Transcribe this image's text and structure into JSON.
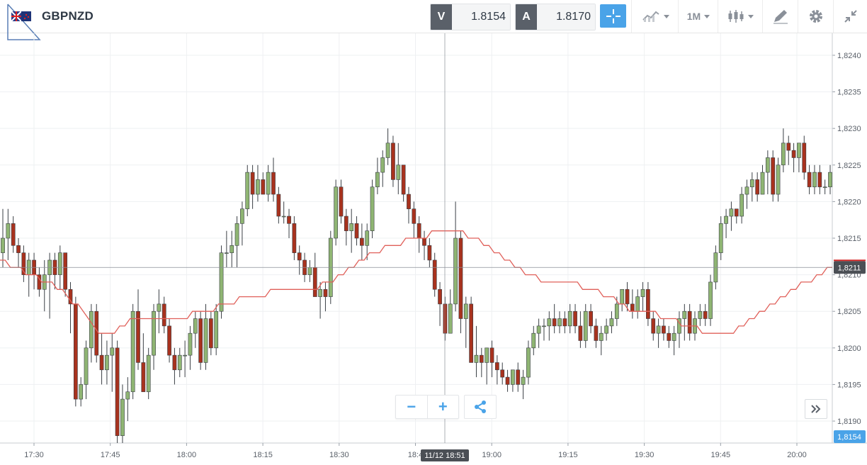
{
  "header": {
    "symbol": "GBPNZD",
    "bid_tag": "V",
    "bid_value": "1.8154",
    "ask_tag": "A",
    "ask_value": "1.8170",
    "timeframe": "1M",
    "icons": [
      "flag-gb-nz-icon",
      "crosshair-icon",
      "chart-style-icon",
      "candlestick-icon",
      "drawing-tools-icon",
      "gear-icon",
      "collapse-icon"
    ]
  },
  "chart_data": {
    "type": "candlestick",
    "ylim": [
      1.8187,
      1.8243
    ],
    "y_ticks": [
      "1,8190",
      "1,8195",
      "1,8200",
      "1,8205",
      "1,8210",
      "1,8215",
      "1,8220",
      "1,8225",
      "1,8230",
      "1,8235",
      "1,8240"
    ],
    "x_ticks": [
      "17:30",
      "17:45",
      "18:00",
      "18:15",
      "18:30",
      "18:4",
      "19:00",
      "19:15",
      "19:30",
      "19:45",
      "20:00"
    ],
    "crosshair_time_label": "11/12 18:51",
    "crosshair_price": 1.8211,
    "crosshair_price_label": "1,8211",
    "current_price": 1.8154,
    "current_price_label": "1,8154",
    "colors": {
      "up": "#8fb573",
      "down": "#a8321e",
      "ma": "#e0605a",
      "price_tag_dark": "#4b4f55",
      "price_tag_blue": "#4aa3e8"
    },
    "candles": [
      [
        1.8213,
        1.8219,
        1.8211,
        1.8215
      ],
      [
        1.8215,
        1.8219,
        1.8212,
        1.8217
      ],
      [
        1.8217,
        1.8218,
        1.8213,
        1.8214
      ],
      [
        1.8214,
        1.8215,
        1.8211,
        1.8213
      ],
      [
        1.8213,
        1.8214,
        1.8209,
        1.821
      ],
      [
        1.821,
        1.8213,
        1.8207,
        1.8212
      ],
      [
        1.8212,
        1.8213,
        1.8208,
        1.821
      ],
      [
        1.821,
        1.8211,
        1.8207,
        1.8208
      ],
      [
        1.8208,
        1.8212,
        1.8205,
        1.821
      ],
      [
        1.821,
        1.8213,
        1.8204,
        1.8212
      ],
      [
        1.8212,
        1.8213,
        1.8208,
        1.821
      ],
      [
        1.821,
        1.8214,
        1.8208,
        1.8213
      ],
      [
        1.8213,
        1.8213,
        1.8207,
        1.8208
      ],
      [
        1.8208,
        1.8209,
        1.8202,
        1.8206
      ],
      [
        1.8206,
        1.8207,
        1.8192,
        1.8193
      ],
      [
        1.8193,
        1.8196,
        1.8192,
        1.8195
      ],
      [
        1.8195,
        1.8201,
        1.8193,
        1.82
      ],
      [
        1.82,
        1.8206,
        1.8198,
        1.8205
      ],
      [
        1.8205,
        1.8206,
        1.8198,
        1.8199
      ],
      [
        1.8199,
        1.8202,
        1.8195,
        1.8197
      ],
      [
        1.8197,
        1.8201,
        1.8195,
        1.8199
      ],
      [
        1.8199,
        1.8202,
        1.8194,
        1.82
      ],
      [
        1.82,
        1.8201,
        1.8187,
        1.8188
      ],
      [
        1.8188,
        1.8195,
        1.8187,
        1.8193
      ],
      [
        1.8193,
        1.8196,
        1.819,
        1.8194
      ],
      [
        1.8194,
        1.8206,
        1.8193,
        1.8205
      ],
      [
        1.8205,
        1.8208,
        1.8197,
        1.8198
      ],
      [
        1.8198,
        1.8202,
        1.8194,
        1.8194
      ],
      [
        1.8194,
        1.82,
        1.8193,
        1.8199
      ],
      [
        1.8199,
        1.8206,
        1.8197,
        1.8205
      ],
      [
        1.8205,
        1.8208,
        1.8202,
        1.8206
      ],
      [
        1.8206,
        1.8207,
        1.8202,
        1.8203
      ],
      [
        1.8203,
        1.8204,
        1.8198,
        1.8199
      ],
      [
        1.8199,
        1.82,
        1.8195,
        1.8197
      ],
      [
        1.8197,
        1.82,
        1.8196,
        1.8199
      ],
      [
        1.8199,
        1.8201,
        1.8196,
        1.8199
      ],
      [
        1.8199,
        1.8203,
        1.8197,
        1.8202
      ],
      [
        1.8202,
        1.8205,
        1.82,
        1.8204
      ],
      [
        1.8204,
        1.8205,
        1.8197,
        1.8198
      ],
      [
        1.8198,
        1.8206,
        1.8197,
        1.8204
      ],
      [
        1.8204,
        1.8205,
        1.8199,
        1.82
      ],
      [
        1.82,
        1.8206,
        1.8199,
        1.8205
      ],
      [
        1.8205,
        1.8214,
        1.8204,
        1.8213
      ],
      [
        1.8213,
        1.8216,
        1.8211,
        1.8213
      ],
      [
        1.8213,
        1.8216,
        1.8211,
        1.8214
      ],
      [
        1.8214,
        1.8218,
        1.8211,
        1.8217
      ],
      [
        1.8217,
        1.822,
        1.8214,
        1.8219
      ],
      [
        1.8219,
        1.8225,
        1.8218,
        1.8224
      ],
      [
        1.8224,
        1.8225,
        1.8219,
        1.8221
      ],
      [
        1.8221,
        1.8225,
        1.822,
        1.8223
      ],
      [
        1.8223,
        1.8224,
        1.8221,
        1.8221
      ],
      [
        1.8221,
        1.8225,
        1.822,
        1.8224
      ],
      [
        1.8224,
        1.8226,
        1.822,
        1.8221
      ],
      [
        1.8221,
        1.8222,
        1.8217,
        1.8218
      ],
      [
        1.8218,
        1.822,
        1.8217,
        1.8218
      ],
      [
        1.8218,
        1.8219,
        1.8215,
        1.8217
      ],
      [
        1.8217,
        1.8218,
        1.8212,
        1.8213
      ],
      [
        1.8213,
        1.8214,
        1.821,
        1.8212
      ],
      [
        1.8212,
        1.8213,
        1.8209,
        1.821
      ],
      [
        1.821,
        1.8212,
        1.8209,
        1.8211
      ],
      [
        1.8211,
        1.8213,
        1.8207,
        1.8207
      ],
      [
        1.8207,
        1.8209,
        1.8204,
        1.8208
      ],
      [
        1.8208,
        1.8209,
        1.8205,
        1.8207
      ],
      [
        1.8207,
        1.8216,
        1.8206,
        1.8215
      ],
      [
        1.8215,
        1.8223,
        1.8214,
        1.8222
      ],
      [
        1.8222,
        1.8223,
        1.8217,
        1.8218
      ],
      [
        1.8218,
        1.8219,
        1.8214,
        1.8216
      ],
      [
        1.8216,
        1.8219,
        1.8213,
        1.8217
      ],
      [
        1.8217,
        1.8218,
        1.8214,
        1.8215
      ],
      [
        1.8215,
        1.8217,
        1.8212,
        1.8214
      ],
      [
        1.8214,
        1.8217,
        1.8212,
        1.8216
      ],
      [
        1.8216,
        1.8223,
        1.8215,
        1.8222
      ],
      [
        1.8222,
        1.8226,
        1.8221,
        1.8224
      ],
      [
        1.8224,
        1.8227,
        1.8222,
        1.8226
      ],
      [
        1.8226,
        1.823,
        1.8225,
        1.8228
      ],
      [
        1.8228,
        1.8229,
        1.8222,
        1.8223
      ],
      [
        1.8223,
        1.8228,
        1.8221,
        1.8225
      ],
      [
        1.8225,
        1.8225,
        1.822,
        1.8221
      ],
      [
        1.8221,
        1.8222,
        1.8217,
        1.8219
      ],
      [
        1.8219,
        1.822,
        1.8215,
        1.8217
      ],
      [
        1.8217,
        1.8218,
        1.8213,
        1.8215
      ],
      [
        1.8215,
        1.8216,
        1.8212,
        1.8214
      ],
      [
        1.8214,
        1.8215,
        1.8211,
        1.8212
      ],
      [
        1.8212,
        1.8213,
        1.8207,
        1.8208
      ],
      [
        1.8208,
        1.8209,
        1.8203,
        1.8206
      ],
      [
        1.8206,
        1.8207,
        1.8201,
        1.8202
      ],
      [
        1.8202,
        1.8208,
        1.8202,
        1.8206
      ],
      [
        1.8206,
        1.822,
        1.8205,
        1.8215
      ],
      [
        1.8215,
        1.8216,
        1.8202,
        1.8204
      ],
      [
        1.8204,
        1.8207,
        1.82,
        1.8206
      ],
      [
        1.8206,
        1.8207,
        1.8198,
        1.8198
      ],
      [
        1.8198,
        1.8203,
        1.8196,
        1.8199
      ],
      [
        1.8199,
        1.82,
        1.8196,
        1.8198
      ],
      [
        1.8198,
        1.82,
        1.8195,
        1.82
      ],
      [
        1.82,
        1.8201,
        1.8196,
        1.8198
      ],
      [
        1.8198,
        1.8199,
        1.8195,
        1.8197
      ],
      [
        1.8197,
        1.8198,
        1.8195,
        1.8196
      ],
      [
        1.8196,
        1.8197,
        1.8194,
        1.8195
      ],
      [
        1.8195,
        1.8197,
        1.8194,
        1.8197
      ],
      [
        1.8197,
        1.8198,
        1.8194,
        1.8195
      ],
      [
        1.8195,
        1.8197,
        1.8193,
        1.8196
      ],
      [
        1.8196,
        1.8201,
        1.8195,
        1.82
      ],
      [
        1.82,
        1.8203,
        1.8199,
        1.8202
      ],
      [
        1.8202,
        1.8204,
        1.82,
        1.8203
      ],
      [
        1.8203,
        1.8204,
        1.8201,
        1.8203
      ],
      [
        1.8203,
        1.8205,
        1.8201,
        1.8204
      ],
      [
        1.8204,
        1.8206,
        1.8202,
        1.8203
      ],
      [
        1.8203,
        1.8205,
        1.8202,
        1.8204
      ],
      [
        1.8204,
        1.8205,
        1.8202,
        1.8203
      ],
      [
        1.8203,
        1.8206,
        1.8202,
        1.8205
      ],
      [
        1.8205,
        1.8206,
        1.8202,
        1.8203
      ],
      [
        1.8203,
        1.8205,
        1.82,
        1.8201
      ],
      [
        1.8201,
        1.8206,
        1.82,
        1.8205
      ],
      [
        1.8205,
        1.8206,
        1.8202,
        1.8203
      ],
      [
        1.8203,
        1.8204,
        1.82,
        1.8201
      ],
      [
        1.8201,
        1.8203,
        1.8199,
        1.8202
      ],
      [
        1.8202,
        1.8204,
        1.8201,
        1.8203
      ],
      [
        1.8203,
        1.8205,
        1.8202,
        1.8204
      ],
      [
        1.8204,
        1.8207,
        1.8203,
        1.8206
      ],
      [
        1.8206,
        1.8208,
        1.8205,
        1.8208
      ],
      [
        1.8208,
        1.8209,
        1.8205,
        1.8206
      ],
      [
        1.8206,
        1.8208,
        1.8204,
        1.8205
      ],
      [
        1.8205,
        1.8208,
        1.8204,
        1.8207
      ],
      [
        1.8207,
        1.8209,
        1.8205,
        1.8208
      ],
      [
        1.8208,
        1.8209,
        1.8203,
        1.8204
      ],
      [
        1.8204,
        1.8205,
        1.8201,
        1.8202
      ],
      [
        1.8202,
        1.8204,
        1.82,
        1.8203
      ],
      [
        1.8203,
        1.8204,
        1.8201,
        1.8202
      ],
      [
        1.8202,
        1.8203,
        1.82,
        1.8201
      ],
      [
        1.8201,
        1.8203,
        1.8199,
        1.8202
      ],
      [
        1.8202,
        1.8205,
        1.82,
        1.8204
      ],
      [
        1.8204,
        1.8206,
        1.8201,
        1.8205
      ],
      [
        1.8205,
        1.8206,
        1.8201,
        1.8202
      ],
      [
        1.8202,
        1.8205,
        1.8201,
        1.8204
      ],
      [
        1.8204,
        1.8206,
        1.8203,
        1.8205
      ],
      [
        1.8205,
        1.8206,
        1.8203,
        1.8204
      ],
      [
        1.8204,
        1.821,
        1.8203,
        1.8209
      ],
      [
        1.8209,
        1.8214,
        1.8208,
        1.8213
      ],
      [
        1.8213,
        1.8218,
        1.8212,
        1.8217
      ],
      [
        1.8217,
        1.8219,
        1.8215,
        1.8218
      ],
      [
        1.8218,
        1.822,
        1.8216,
        1.8219
      ],
      [
        1.8219,
        1.8219,
        1.8217,
        1.8218
      ],
      [
        1.8218,
        1.8222,
        1.8217,
        1.8221
      ],
      [
        1.8221,
        1.8223,
        1.8219,
        1.8222
      ],
      [
        1.8222,
        1.8224,
        1.822,
        1.8223
      ],
      [
        1.8223,
        1.8224,
        1.822,
        1.8221
      ],
      [
        1.8221,
        1.8225,
        1.8221,
        1.8224
      ],
      [
        1.8224,
        1.8227,
        1.8221,
        1.8226
      ],
      [
        1.8226,
        1.8227,
        1.822,
        1.8221
      ],
      [
        1.8221,
        1.8226,
        1.822,
        1.8225
      ],
      [
        1.8225,
        1.823,
        1.8224,
        1.8228
      ],
      [
        1.8228,
        1.8229,
        1.8225,
        1.8227
      ],
      [
        1.8227,
        1.8228,
        1.8224,
        1.8226
      ],
      [
        1.8226,
        1.8228,
        1.8224,
        1.8228
      ],
      [
        1.8228,
        1.8229,
        1.8223,
        1.8224
      ],
      [
        1.8224,
        1.8225,
        1.8221,
        1.8222
      ],
      [
        1.8222,
        1.8225,
        1.8221,
        1.8224
      ],
      [
        1.8224,
        1.8225,
        1.8221,
        1.8222
      ],
      [
        1.8222,
        1.8223,
        1.8221,
        1.8222
      ],
      [
        1.8222,
        1.8225,
        1.8221,
        1.8224
      ]
    ],
    "ma": [
      1.8212,
      1.8212,
      1.8211,
      1.8211,
      1.8211,
      1.821,
      1.821,
      1.821,
      1.8209,
      1.8209,
      1.8209,
      1.8208,
      1.8208,
      1.8207,
      1.8206,
      1.8206,
      1.8205,
      1.8204,
      1.8203,
      1.8202,
      1.8202,
      1.8202,
      1.8202,
      1.8203,
      1.8203,
      1.8204,
      1.8204,
      1.8204,
      1.8204,
      1.8204,
      1.8204,
      1.8204,
      1.8204,
      1.8204,
      1.8204,
      1.8204,
      1.8204,
      1.8205,
      1.8205,
      1.8205,
      1.8205,
      1.8205,
      1.8206,
      1.8206,
      1.8206,
      1.8206,
      1.8207,
      1.8207,
      1.8207,
      1.8207,
      1.8207,
      1.8207,
      1.8208,
      1.8208,
      1.8208,
      1.8208,
      1.8208,
      1.8208,
      1.8208,
      1.8208,
      1.8208,
      1.8208,
      1.8209,
      1.8209,
      1.8209,
      1.821,
      1.821,
      1.8211,
      1.8211,
      1.8212,
      1.8212,
      1.8213,
      1.8213,
      1.8213,
      1.8214,
      1.8214,
      1.8214,
      1.8214,
      1.8215,
      1.8215,
      1.8215,
      1.8215,
      1.8215,
      1.8216,
      1.8216,
      1.8216,
      1.8216,
      1.8216,
      1.8216,
      1.8216,
      1.8215,
      1.8215,
      1.8215,
      1.8214,
      1.8214,
      1.8213,
      1.8213,
      1.8212,
      1.8212,
      1.8211,
      1.8211,
      1.821,
      1.821,
      1.821,
      1.8209,
      1.8209,
      1.8209,
      1.8209,
      1.8209,
      1.8209,
      1.8209,
      1.8209,
      1.8208,
      1.8208,
      1.8208,
      1.8208,
      1.8207,
      1.8207,
      1.8207,
      1.8206,
      1.8206,
      1.8205,
      1.8205,
      1.8205,
      1.8205,
      1.8205,
      1.8205,
      1.8204,
      1.8204,
      1.8204,
      1.8204,
      1.8203,
      1.8203,
      1.8203,
      1.8203,
      1.8202,
      1.8202,
      1.8202,
      1.8202,
      1.8202,
      1.8202,
      1.8202,
      1.8203,
      1.8203,
      1.8204,
      1.8204,
      1.8205,
      1.8205,
      1.8206,
      1.8206,
      1.8207,
      1.8207,
      1.8208,
      1.8208,
      1.8209,
      1.8209,
      1.8209,
      1.821,
      1.821,
      1.8211,
      1.8211
    ]
  },
  "controls": {
    "zoom_out_label": "−",
    "zoom_in_label": "+",
    "icons": [
      "share-icon",
      "scroll-forward-icon"
    ]
  }
}
